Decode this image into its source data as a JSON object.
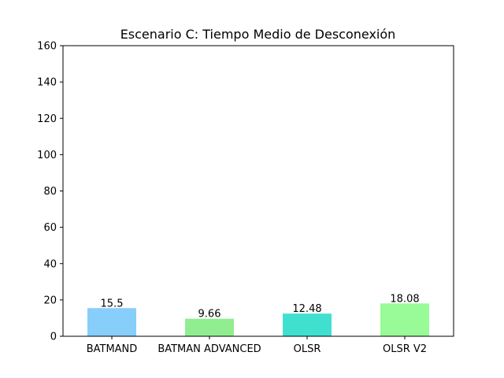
{
  "chart_data": {
    "type": "bar",
    "title": "Escenario C: Tiempo Medio de Desconexión",
    "xlabel": "",
    "ylabel": "",
    "categories": [
      "BATMAND",
      "BATMAN ADVANCED",
      "OLSR",
      "OLSR V2"
    ],
    "values": [
      15.5,
      9.66,
      12.48,
      18.08
    ],
    "value_labels": [
      "15.5",
      "9.66",
      "12.48",
      "18.08"
    ],
    "colors": [
      "#87cefa",
      "#90ee90",
      "#40e0d0",
      "#98fb98"
    ],
    "ylim": [
      0,
      160
    ],
    "yticks": [
      0,
      20,
      40,
      60,
      80,
      100,
      120,
      140,
      160
    ],
    "grid": false,
    "legend": "none"
  }
}
